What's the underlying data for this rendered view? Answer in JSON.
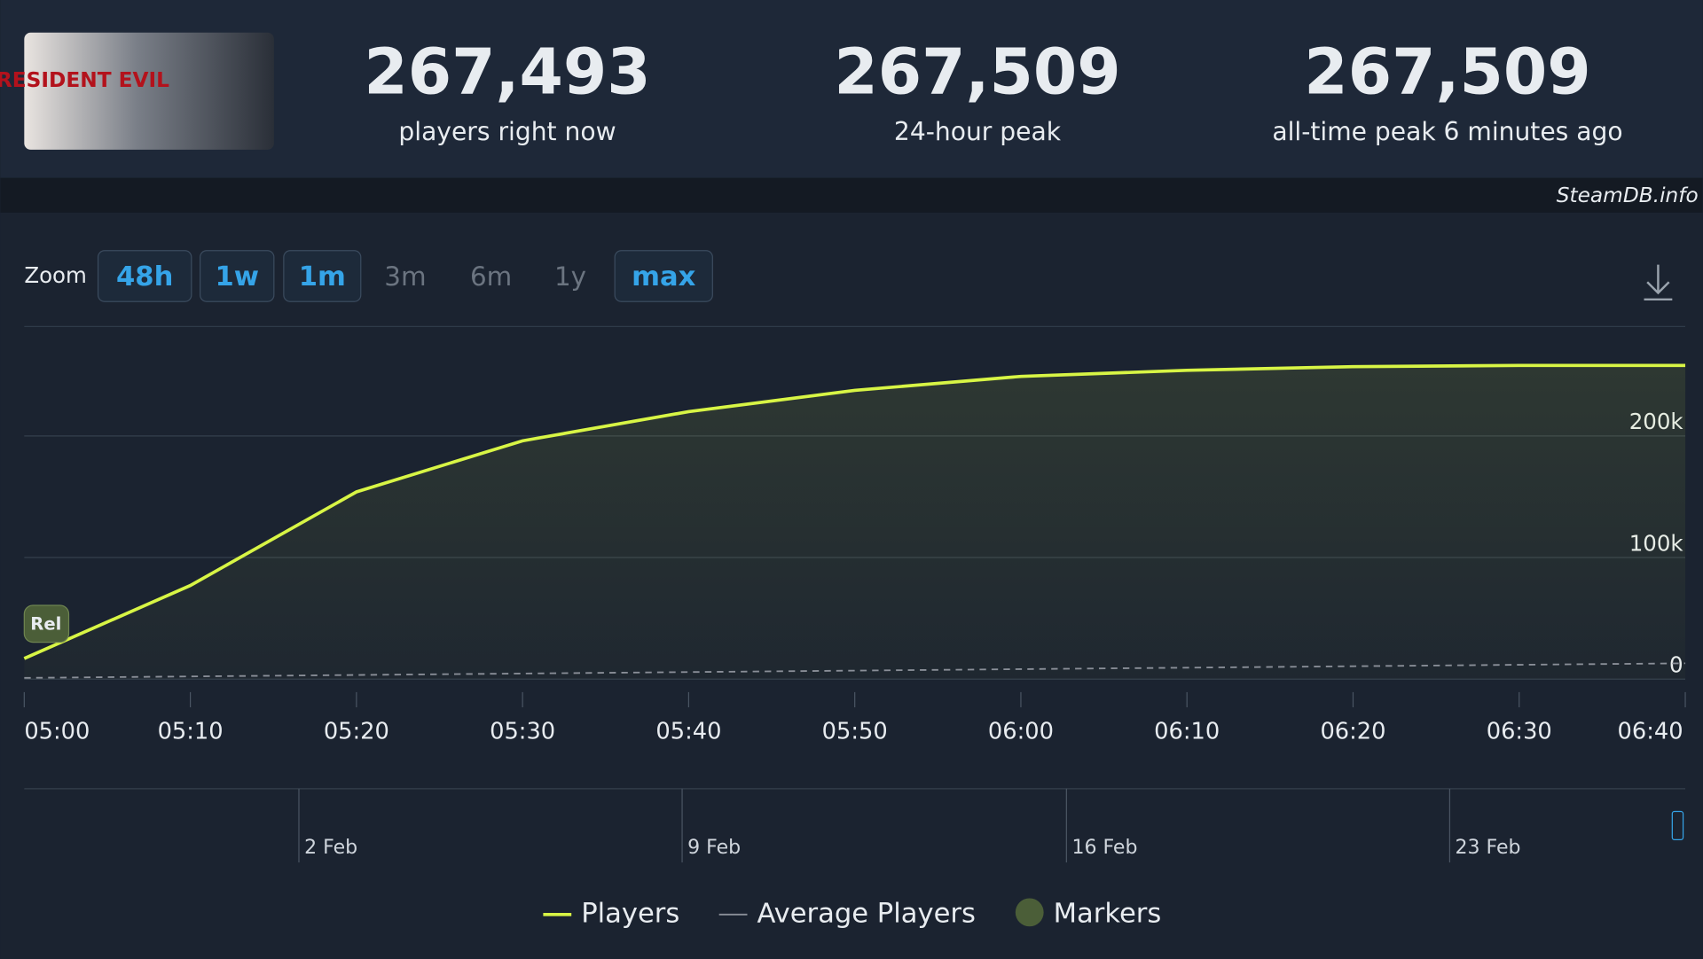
{
  "header": {
    "thumbnail_text": "RESIDENT EVIL",
    "stats": [
      {
        "value": "267,493",
        "label": "players right now"
      },
      {
        "value": "267,509",
        "label": "24-hour peak"
      },
      {
        "value": "267,509",
        "label": "all-time peak 6 minutes ago"
      }
    ]
  },
  "watermark": "SteamDB.info",
  "zoom": {
    "label": "Zoom",
    "options": [
      {
        "text": "48h",
        "active": true
      },
      {
        "text": "1w",
        "active": true
      },
      {
        "text": "1m",
        "active": true
      },
      {
        "text": "3m",
        "active": false
      },
      {
        "text": "6m",
        "active": false
      },
      {
        "text": "1y",
        "active": false
      },
      {
        "text": "max",
        "active": true
      }
    ]
  },
  "chart_data": {
    "type": "line",
    "categories": [
      "05:00",
      "05:10",
      "05:20",
      "05:30",
      "05:40",
      "05:50",
      "06:00",
      "06:10",
      "06:20",
      "06:30",
      "06:40"
    ],
    "series": [
      {
        "name": "Players",
        "color": "#d8f545",
        "values": [
          17000,
          77000,
          154000,
          196000,
          220000,
          237500,
          249000,
          254000,
          257000,
          258000,
          258000
        ]
      },
      {
        "name": "Average Players",
        "color": "#8a8f98",
        "dashed": true,
        "values": [
          1000,
          2200,
          3400,
          4600,
          5800,
          7000,
          8200,
          9400,
          10600,
          11800,
          13000
        ]
      }
    ],
    "ylim": [
      0,
      290000
    ],
    "yticks": [
      0,
      {
        "value": 100000,
        "label": "100k"
      },
      {
        "value": 200000,
        "label": "200k"
      }
    ],
    "markers": {
      "name": "Markers",
      "color": "#4b5e38",
      "label": "Rel"
    },
    "navigator": {
      "labels": [
        "2 Feb",
        "9 Feb",
        "16 Feb",
        "23 Feb"
      ]
    }
  }
}
